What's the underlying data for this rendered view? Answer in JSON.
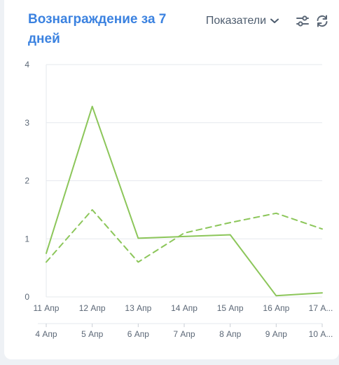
{
  "widget": {
    "title": "Вознаграждение за 7 дней",
    "metric_selector_label": "Показатели",
    "icons": [
      "chevron-down-icon",
      "filter-sliders-icon",
      "refresh-icon"
    ]
  },
  "colors": {
    "title": "#3b82e0",
    "series": "#8cc65a",
    "grid": "#e6e9ee",
    "axis_text": "#5b6776"
  },
  "chart_data": {
    "type": "line",
    "title": "Вознаграждение за 7 дней",
    "ylim": [
      0,
      4
    ],
    "yticks": [
      "0",
      "1",
      "2",
      "3",
      "4"
    ],
    "grid": true,
    "x_primary_labels": [
      "11 Апр",
      "12 Апр",
      "13 Апр",
      "14 Апр",
      "15 Апр",
      "16 Апр",
      "17 А..."
    ],
    "x_secondary_labels": [
      "4 Апр",
      "5 Апр",
      "6 Апр",
      "7 Апр",
      "8 Апр",
      "9 Апр",
      "10 А..."
    ],
    "series": [
      {
        "style": "solid",
        "axis": "primary",
        "values": [
          0.75,
          3.28,
          1.01,
          1.04,
          1.07,
          0.02,
          0.07
        ]
      },
      {
        "style": "dashed",
        "axis": "secondary",
        "values": [
          0.6,
          1.5,
          0.6,
          1.1,
          1.28,
          1.44,
          1.17
        ]
      }
    ]
  }
}
